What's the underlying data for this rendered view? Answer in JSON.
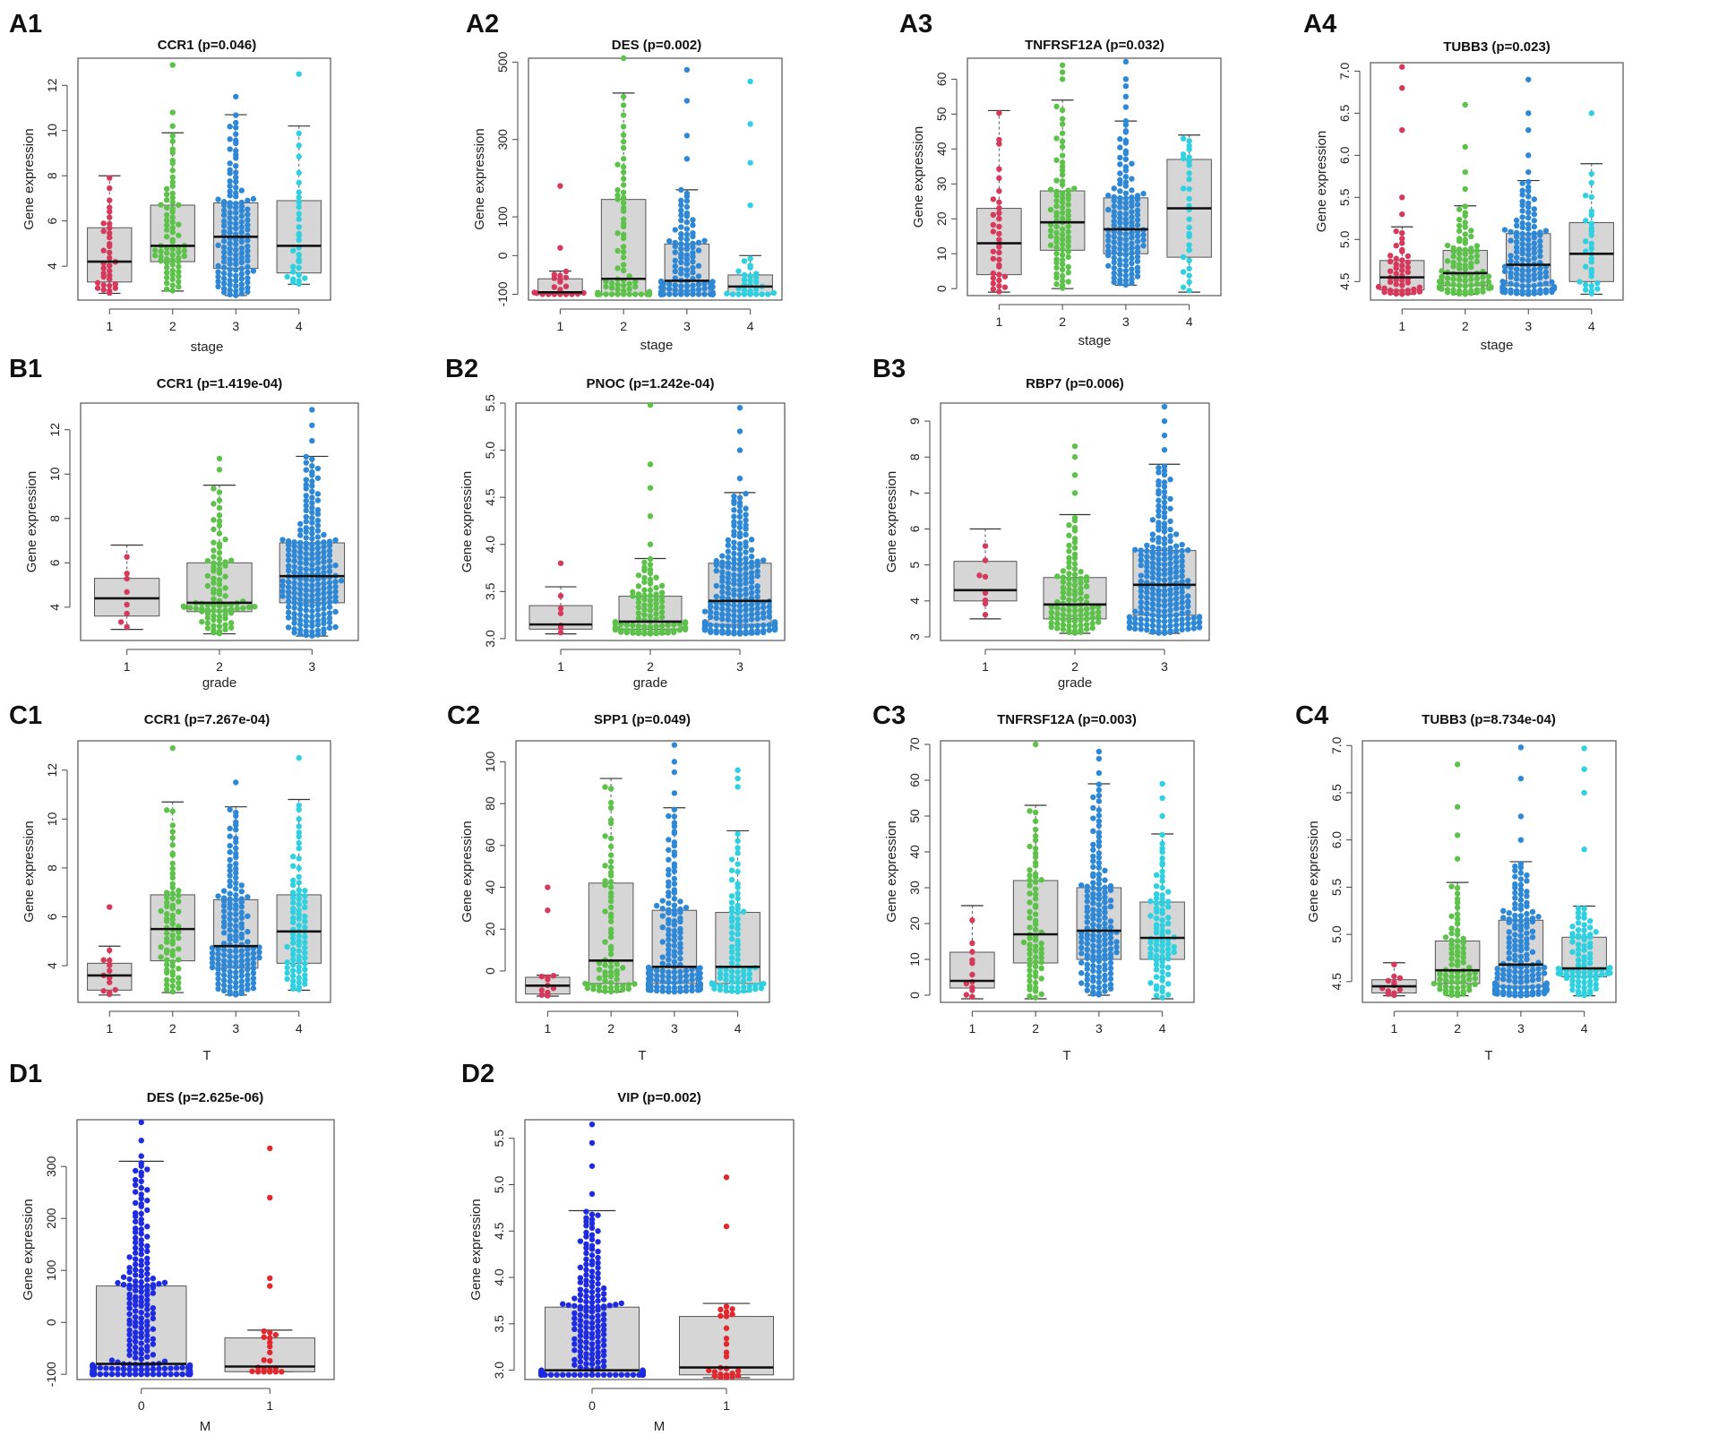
{
  "figure": {
    "colors": {
      "box_fill": "#d6d6d6",
      "stroke": "#555555",
      "median": "#111111"
    }
  },
  "chart_data": [
    {
      "id": "A1",
      "type": "boxplot",
      "title": "CCR1 (p=0.046)",
      "xlabel": "stage",
      "ylabel": "Gene expression",
      "ylim": [
        2.5,
        13.2
      ],
      "yticks": [
        4,
        6,
        8,
        10,
        12
      ],
      "categories": [
        "1",
        "2",
        "3",
        "4"
      ],
      "colors": [
        "#d6395b",
        "#5cc24a",
        "#2e88d6",
        "#2fd0e0"
      ],
      "boxes": [
        {
          "min": 2.8,
          "q1": 3.3,
          "median": 4.2,
          "q3": 5.7,
          "max": 8.0,
          "n": 35,
          "outliers": []
        },
        {
          "min": 2.9,
          "q1": 4.2,
          "median": 4.9,
          "q3": 6.7,
          "max": 9.9,
          "n": 70,
          "outliers": [
            10.2,
            10.8,
            12.9
          ]
        },
        {
          "min": 2.7,
          "q1": 3.9,
          "median": 5.3,
          "q3": 6.8,
          "max": 10.7,
          "n": 130,
          "outliers": [
            11.5
          ]
        },
        {
          "min": 3.2,
          "q1": 3.7,
          "median": 4.9,
          "q3": 6.9,
          "max": 10.2,
          "n": 30,
          "outliers": [
            12.5
          ]
        }
      ]
    },
    {
      "id": "A2",
      "type": "boxplot",
      "title": "DES (p=0.002)",
      "xlabel": "stage",
      "ylabel": "Gene expression",
      "ylim": [
        -115,
        510
      ],
      "yticks": [
        -100,
        0,
        100,
        300,
        500
      ],
      "ytick_labels": [
        "-100",
        "0",
        "100",
        "300",
        "500"
      ],
      "categories": [
        "1",
        "2",
        "3",
        "4"
      ],
      "colors": [
        "#d6395b",
        "#5cc24a",
        "#2e88d6",
        "#2fd0e0"
      ],
      "boxes": [
        {
          "min": -100,
          "q1": -100,
          "median": -95,
          "q3": -60,
          "max": -40,
          "n": 20,
          "outliers": [
            20,
            180
          ]
        },
        {
          "min": -100,
          "q1": -100,
          "median": -60,
          "q3": 145,
          "max": 420,
          "n": 70,
          "outliers": [
            510
          ]
        },
        {
          "min": -100,
          "q1": -100,
          "median": -65,
          "q3": 30,
          "max": 170,
          "n": 120,
          "outliers": [
            250,
            310,
            400,
            480
          ]
        },
        {
          "min": -100,
          "q1": -100,
          "median": -80,
          "q3": -50,
          "max": 0,
          "n": 28,
          "outliers": [
            130,
            240,
            340,
            450
          ]
        }
      ]
    },
    {
      "id": "A3",
      "type": "boxplot",
      "title": "TNFRSF12A (p=0.032)",
      "xlabel": "stage",
      "ylabel": "Gene expression",
      "ylim": [
        -2,
        66
      ],
      "yticks": [
        0,
        10,
        20,
        30,
        40,
        50,
        60
      ],
      "categories": [
        "1",
        "2",
        "3",
        "4"
      ],
      "colors": [
        "#d6395b",
        "#5cc24a",
        "#2e88d6",
        "#2fd0e0"
      ],
      "boxes": [
        {
          "min": -1,
          "q1": 4,
          "median": 13,
          "q3": 23,
          "max": 51,
          "n": 35,
          "outliers": []
        },
        {
          "min": 0,
          "q1": 11,
          "median": 19,
          "q3": 28,
          "max": 54,
          "n": 80,
          "outliers": [
            60,
            62,
            64
          ]
        },
        {
          "min": 1,
          "q1": 10,
          "median": 17,
          "q3": 26,
          "max": 48,
          "n": 130,
          "outliers": [
            52,
            55,
            58,
            60,
            65
          ]
        },
        {
          "min": -1,
          "q1": 9,
          "median": 23,
          "q3": 37,
          "max": 44,
          "n": 30,
          "outliers": []
        }
      ]
    },
    {
      "id": "A4",
      "type": "boxplot",
      "title": "TUBB3 (p=0.023)",
      "xlabel": "stage",
      "ylabel": "Gene expression",
      "ylim": [
        4.28,
        7.1
      ],
      "yticks": [
        4.5,
        5.0,
        5.5,
        6.0,
        6.5,
        7.0
      ],
      "ytick_labels": [
        "4.5",
        "5.0",
        "5.5",
        "6.0",
        "6.5",
        "7.0"
      ],
      "categories": [
        "1",
        "2",
        "3",
        "4"
      ],
      "colors": [
        "#d6395b",
        "#5cc24a",
        "#2e88d6",
        "#2fd0e0"
      ],
      "boxes": [
        {
          "min": 4.35,
          "q1": 4.4,
          "median": 4.55,
          "q3": 4.75,
          "max": 5.15,
          "n": 45,
          "outliers": [
            5.3,
            5.5,
            6.3,
            6.8,
            7.05
          ]
        },
        {
          "min": 4.35,
          "q1": 4.45,
          "median": 4.6,
          "q3": 4.87,
          "max": 5.4,
          "n": 90,
          "outliers": [
            5.6,
            5.8,
            6.1,
            6.6
          ]
        },
        {
          "min": 4.35,
          "q1": 4.45,
          "median": 4.7,
          "q3": 5.07,
          "max": 5.7,
          "n": 130,
          "outliers": [
            5.8,
            6.0,
            6.3,
            6.5,
            6.9
          ]
        },
        {
          "min": 4.35,
          "q1": 4.5,
          "median": 4.83,
          "q3": 5.2,
          "max": 5.9,
          "n": 30,
          "outliers": [
            6.5
          ]
        }
      ]
    },
    {
      "id": "B1",
      "type": "boxplot",
      "title": "CCR1 (p=1.419e-04)",
      "xlabel": "grade",
      "ylabel": "Gene expression",
      "ylim": [
        2.5,
        13.2
      ],
      "yticks": [
        4,
        6,
        8,
        10,
        12
      ],
      "categories": [
        "1",
        "2",
        "3"
      ],
      "colors": [
        "#d6395b",
        "#5cc24a",
        "#2e88d6"
      ],
      "boxes": [
        {
          "min": 3.0,
          "q1": 3.6,
          "median": 4.4,
          "q3": 5.3,
          "max": 6.8,
          "n": 8,
          "outliers": []
        },
        {
          "min": 2.8,
          "q1": 3.8,
          "median": 4.2,
          "q3": 6.0,
          "max": 9.5,
          "n": 90,
          "outliers": [
            10.2,
            10.7
          ]
        },
        {
          "min": 2.7,
          "q1": 4.2,
          "median": 5.4,
          "q3": 6.9,
          "max": 10.8,
          "n": 210,
          "outliers": [
            11.5,
            12.2,
            12.9
          ]
        }
      ]
    },
    {
      "id": "B2",
      "type": "boxplot",
      "title": "PNOC (p=1.242e-04)",
      "xlabel": "grade",
      "ylabel": "Gene expression",
      "ylim": [
        2.98,
        5.5
      ],
      "yticks": [
        3.0,
        3.5,
        4.0,
        4.5,
        5.0,
        5.5
      ],
      "ytick_labels": [
        "3.0",
        "3.5",
        "4.0",
        "4.5",
        "5.0",
        "5.5"
      ],
      "categories": [
        "1",
        "2",
        "3"
      ],
      "colors": [
        "#d6395b",
        "#5cc24a",
        "#2e88d6"
      ],
      "boxes": [
        {
          "min": 3.05,
          "q1": 3.1,
          "median": 3.15,
          "q3": 3.35,
          "max": 3.55,
          "n": 6,
          "outliers": [
            3.8
          ]
        },
        {
          "min": 3.05,
          "q1": 3.1,
          "median": 3.18,
          "q3": 3.45,
          "max": 3.85,
          "n": 100,
          "outliers": [
            4.0,
            4.3,
            4.6,
            4.85,
            5.48
          ]
        },
        {
          "min": 3.05,
          "q1": 3.15,
          "median": 3.4,
          "q3": 3.8,
          "max": 4.55,
          "n": 210,
          "outliers": [
            4.7,
            5.0,
            5.2,
            5.45
          ]
        }
      ]
    },
    {
      "id": "B3",
      "type": "boxplot",
      "title": "RBP7 (p=0.006)",
      "xlabel": "grade",
      "ylabel": "Gene expression",
      "ylim": [
        2.9,
        9.5
      ],
      "yticks": [
        3,
        4,
        5,
        6,
        7,
        8,
        9
      ],
      "categories": [
        "1",
        "2",
        "3"
      ],
      "colors": [
        "#d6395b",
        "#5cc24a",
        "#2e88d6"
      ],
      "boxes": [
        {
          "min": 3.5,
          "q1": 4.0,
          "median": 4.3,
          "q3": 5.1,
          "max": 6.0,
          "n": 8,
          "outliers": []
        },
        {
          "min": 3.1,
          "q1": 3.5,
          "median": 3.9,
          "q3": 4.65,
          "max": 6.4,
          "n": 100,
          "outliers": [
            7.0,
            7.5,
            8.0,
            8.3
          ]
        },
        {
          "min": 3.1,
          "q1": 3.6,
          "median": 4.45,
          "q3": 5.4,
          "max": 7.8,
          "n": 210,
          "outliers": [
            8.2,
            8.6,
            9.0,
            9.4
          ]
        }
      ]
    },
    {
      "id": "C1",
      "type": "boxplot",
      "title": "CCR1 (p=7.267e-04)",
      "xlabel": "T",
      "ylabel": "Gene expression",
      "ylim": [
        2.5,
        13.2
      ],
      "yticks": [
        4,
        6,
        8,
        10,
        12
      ],
      "categories": [
        "1",
        "2",
        "3",
        "4"
      ],
      "colors": [
        "#d6395b",
        "#5cc24a",
        "#2e88d6",
        "#2fd0e0"
      ],
      "boxes": [
        {
          "min": 2.8,
          "q1": 3.0,
          "median": 3.6,
          "q3": 4.1,
          "max": 4.8,
          "n": 12,
          "outliers": [
            6.4
          ]
        },
        {
          "min": 2.9,
          "q1": 4.2,
          "median": 5.5,
          "q3": 6.9,
          "max": 10.7,
          "n": 70,
          "outliers": [
            12.9
          ]
        },
        {
          "min": 2.8,
          "q1": 3.9,
          "median": 4.8,
          "q3": 6.7,
          "max": 10.5,
          "n": 150,
          "outliers": [
            11.5
          ]
        },
        {
          "min": 3.0,
          "q1": 4.1,
          "median": 5.4,
          "q3": 6.9,
          "max": 10.8,
          "n": 80,
          "outliers": [
            12.5
          ]
        }
      ]
    },
    {
      "id": "C2",
      "type": "boxplot",
      "title": "SPP1 (p=0.049)",
      "xlabel": "T",
      "ylabel": "Gene expression",
      "ylim": [
        -15,
        110
      ],
      "yticks": [
        0,
        20,
        40,
        60,
        80,
        100
      ],
      "categories": [
        "1",
        "2",
        "3",
        "4"
      ],
      "colors": [
        "#d6395b",
        "#5cc24a",
        "#2e88d6",
        "#2fd0e0"
      ],
      "boxes": [
        {
          "min": -12,
          "q1": -11,
          "median": -7,
          "q3": -3,
          "max": -2,
          "n": 10,
          "outliers": [
            29,
            40
          ]
        },
        {
          "min": -10,
          "q1": -6,
          "median": 5,
          "q3": 42,
          "max": 92,
          "n": 70,
          "outliers": []
        },
        {
          "min": -10,
          "q1": -6,
          "median": 2,
          "q3": 29,
          "max": 78,
          "n": 150,
          "outliers": [
            85,
            95,
            100,
            108
          ]
        },
        {
          "min": -10,
          "q1": -6,
          "median": 2,
          "q3": 28,
          "max": 67,
          "n": 80,
          "outliers": [
            88,
            92,
            96
          ]
        }
      ]
    },
    {
      "id": "C3",
      "type": "boxplot",
      "title": "TNFRSF12A (p=0.003)",
      "xlabel": "T",
      "ylabel": "Gene expression",
      "ylim": [
        -2,
        71
      ],
      "yticks": [
        0,
        10,
        20,
        30,
        40,
        50,
        60,
        70
      ],
      "categories": [
        "1",
        "2",
        "3",
        "4"
      ],
      "colors": [
        "#d6395b",
        "#5cc24a",
        "#2e88d6",
        "#2fd0e0"
      ],
      "boxes": [
        {
          "min": -1,
          "q1": 2,
          "median": 4,
          "q3": 12,
          "max": 25,
          "n": 12,
          "outliers": []
        },
        {
          "min": -1,
          "q1": 9,
          "median": 17,
          "q3": 32,
          "max": 53,
          "n": 70,
          "outliers": [
            70
          ]
        },
        {
          "min": 0,
          "q1": 10,
          "median": 18,
          "q3": 30,
          "max": 59,
          "n": 150,
          "outliers": [
            62,
            66,
            68
          ]
        },
        {
          "min": -1,
          "q1": 10,
          "median": 16,
          "q3": 26,
          "max": 45,
          "n": 80,
          "outliers": [
            50,
            55,
            59
          ]
        }
      ]
    },
    {
      "id": "C4",
      "type": "boxplot",
      "title": "TUBB3 (p=8.734e-04)",
      "xlabel": "T",
      "ylabel": "Gene expression",
      "ylim": [
        4.28,
        7.05
      ],
      "yticks": [
        4.5,
        5.0,
        5.5,
        6.0,
        6.5,
        7.0
      ],
      "ytick_labels": [
        "4.5",
        "5.0",
        "5.5",
        "6.0",
        "6.5",
        "7.0"
      ],
      "categories": [
        "1",
        "2",
        "3",
        "4"
      ],
      "colors": [
        "#d6395b",
        "#5cc24a",
        "#2e88d6",
        "#2fd0e0"
      ],
      "boxes": [
        {
          "min": 4.35,
          "q1": 4.38,
          "median": 4.45,
          "q3": 4.52,
          "max": 4.7,
          "n": 12,
          "outliers": []
        },
        {
          "min": 4.35,
          "q1": 4.48,
          "median": 4.62,
          "q3": 4.93,
          "max": 5.55,
          "n": 70,
          "outliers": [
            5.8,
            6.05,
            6.35,
            6.8
          ]
        },
        {
          "min": 4.35,
          "q1": 4.45,
          "median": 4.68,
          "q3": 5.15,
          "max": 5.77,
          "n": 150,
          "outliers": [
            6.0,
            6.25,
            6.65,
            6.98
          ]
        },
        {
          "min": 4.35,
          "q1": 4.55,
          "median": 4.64,
          "q3": 4.97,
          "max": 5.3,
          "n": 80,
          "outliers": [
            5.9,
            6.5,
            6.75,
            6.97
          ]
        }
      ]
    },
    {
      "id": "D1",
      "type": "boxplot",
      "title": "DES (p=2.625e-06)",
      "xlabel": "M",
      "ylabel": "Gene expression",
      "ylim": [
        -110,
        390
      ],
      "yticks": [
        -100,
        0,
        100,
        200,
        300
      ],
      "ytick_labels": [
        "-100",
        "0",
        "100",
        "200",
        "300"
      ],
      "categories": [
        "0",
        "1"
      ],
      "colors": [
        "#1f2be0",
        "#e0282e"
      ],
      "boxes": [
        {
          "min": -100,
          "q1": -100,
          "median": -80,
          "q3": 70,
          "max": 310,
          "n": 280,
          "outliers": [
            320,
            350,
            385
          ]
        },
        {
          "min": -95,
          "q1": -95,
          "median": -85,
          "q3": -30,
          "max": -15,
          "n": 20,
          "outliers": [
            70,
            85,
            240,
            335
          ]
        }
      ]
    },
    {
      "id": "D2",
      "type": "boxplot",
      "title": "VIP (p=0.002)",
      "xlabel": "M",
      "ylabel": "Gene expression",
      "ylim": [
        2.9,
        5.7
      ],
      "yticks": [
        3.0,
        3.5,
        4.0,
        4.5,
        5.0,
        5.5
      ],
      "ytick_labels": [
        "3.0",
        "3.5",
        "4.0",
        "4.5",
        "5.0",
        "5.5"
      ],
      "categories": [
        "0",
        "1"
      ],
      "colors": [
        "#1f2be0",
        "#e0282e"
      ],
      "boxes": [
        {
          "min": 2.95,
          "q1": 2.95,
          "median": 3.0,
          "q3": 3.68,
          "max": 4.72,
          "n": 280,
          "outliers": [
            4.9,
            5.2,
            5.45,
            5.65
          ]
        },
        {
          "min": 2.92,
          "q1": 2.95,
          "median": 3.03,
          "q3": 3.58,
          "max": 3.72,
          "n": 25,
          "outliers": [
            4.55,
            5.08
          ]
        }
      ]
    }
  ]
}
